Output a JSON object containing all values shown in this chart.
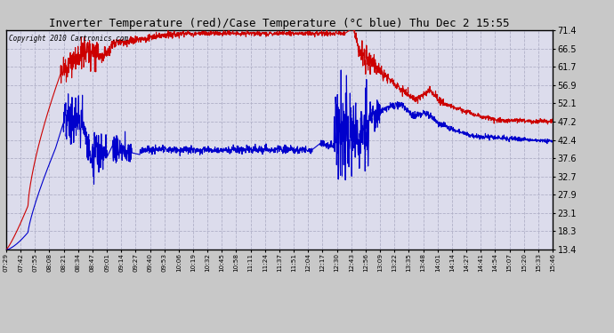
{
  "title": "Inverter Temperature (red)/Case Temperature (°C blue) Thu Dec 2 15:55",
  "copyright": "Copyright 2010 Cartronics.com",
  "y_ticks": [
    13.4,
    18.3,
    23.1,
    27.9,
    32.7,
    37.6,
    42.4,
    47.2,
    52.1,
    56.9,
    61.7,
    66.5,
    71.4
  ],
  "ylim": [
    13.4,
    71.4
  ],
  "x_labels": [
    "07:29",
    "07:42",
    "07:55",
    "08:08",
    "08:21",
    "08:34",
    "08:47",
    "09:01",
    "09:14",
    "09:27",
    "09:40",
    "09:53",
    "10:06",
    "10:19",
    "10:32",
    "10:45",
    "10:58",
    "11:11",
    "11:24",
    "11:37",
    "11:51",
    "12:04",
    "12:17",
    "12:30",
    "12:43",
    "12:56",
    "13:09",
    "13:22",
    "13:35",
    "13:48",
    "14:01",
    "14:14",
    "14:27",
    "14:41",
    "14:54",
    "15:07",
    "15:20",
    "15:33",
    "15:46"
  ],
  "bg_color": "#c8c8c8",
  "plot_bg": "#dcdcec",
  "grid_color": "#b0b0c8",
  "red_color": "#cc0000",
  "blue_color": "#0000cc",
  "title_bg": "#c8c8c8"
}
